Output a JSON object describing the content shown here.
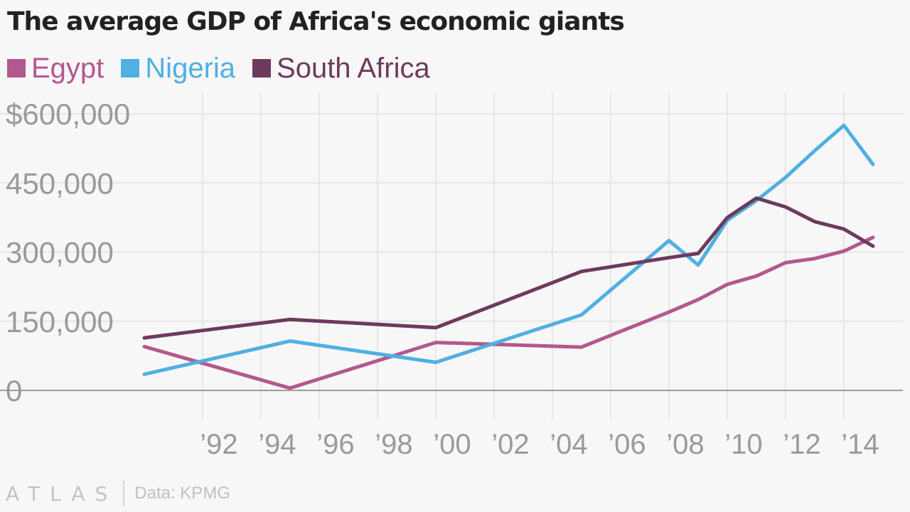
{
  "title": "The average GDP of Africa's economic giants",
  "legend": [
    {
      "label": "Egypt",
      "color": "#b3588e"
    },
    {
      "label": "Nigeria",
      "color": "#4fb0e2"
    },
    {
      "label": "South Africa",
      "color": "#6e3a5c"
    }
  ],
  "footer": {
    "logo": "ATLAS",
    "source": "Data: KPMG"
  },
  "chart_data": {
    "type": "line",
    "title": "The average GDP of Africa's economic giants",
    "xlim": [
      1990,
      2015
    ],
    "ylim": [
      0,
      600000
    ],
    "y_ticks": [
      {
        "value": 0,
        "label": "0"
      },
      {
        "value": 150000,
        "label": "150,000"
      },
      {
        "value": 300000,
        "label": "300,000"
      },
      {
        "value": 450000,
        "label": "450,000"
      },
      {
        "value": 600000,
        "label": "$600,000"
      }
    ],
    "x_ticks": [
      {
        "value": 1992,
        "label": "’92"
      },
      {
        "value": 1994,
        "label": "’94"
      },
      {
        "value": 1996,
        "label": "’96"
      },
      {
        "value": 1998,
        "label": "’98"
      },
      {
        "value": 2000,
        "label": "’00"
      },
      {
        "value": 2002,
        "label": "’02"
      },
      {
        "value": 2004,
        "label": "’04"
      },
      {
        "value": 2006,
        "label": "’06"
      },
      {
        "value": 2008,
        "label": "’08"
      },
      {
        "value": 2010,
        "label": "’10"
      },
      {
        "value": 2012,
        "label": "’12"
      },
      {
        "value": 2014,
        "label": "’14"
      }
    ],
    "grid": true,
    "legend_position": "top-left",
    "series": [
      {
        "name": "Egypt",
        "color": "#b3588e",
        "points": [
          [
            1990,
            95000
          ],
          [
            1995,
            5000
          ],
          [
            2000,
            104000
          ],
          [
            2005,
            94000
          ],
          [
            2008,
            170000
          ],
          [
            2009,
            197000
          ],
          [
            2010,
            230000
          ],
          [
            2011,
            248000
          ],
          [
            2012,
            277000
          ],
          [
            2013,
            286000
          ],
          [
            2014,
            302000
          ],
          [
            2015,
            332000
          ]
        ]
      },
      {
        "name": "Nigeria",
        "color": "#4fb0e2",
        "points": [
          [
            1990,
            35000
          ],
          [
            1995,
            107000
          ],
          [
            2000,
            61000
          ],
          [
            2005,
            164000
          ],
          [
            2008,
            325000
          ],
          [
            2009,
            272000
          ],
          [
            2010,
            369000
          ],
          [
            2011,
            412000
          ],
          [
            2012,
            462000
          ],
          [
            2013,
            520000
          ],
          [
            2014,
            575000
          ],
          [
            2015,
            490000
          ]
        ]
      },
      {
        "name": "South Africa",
        "color": "#6e3a5c",
        "points": [
          [
            1990,
            114000
          ],
          [
            1995,
            154000
          ],
          [
            2000,
            136000
          ],
          [
            2005,
            258000
          ],
          [
            2008,
            288000
          ],
          [
            2009,
            297000
          ],
          [
            2010,
            375000
          ],
          [
            2011,
            417000
          ],
          [
            2012,
            398000
          ],
          [
            2013,
            366000
          ],
          [
            2014,
            350000
          ],
          [
            2015,
            313000
          ]
        ]
      }
    ]
  }
}
